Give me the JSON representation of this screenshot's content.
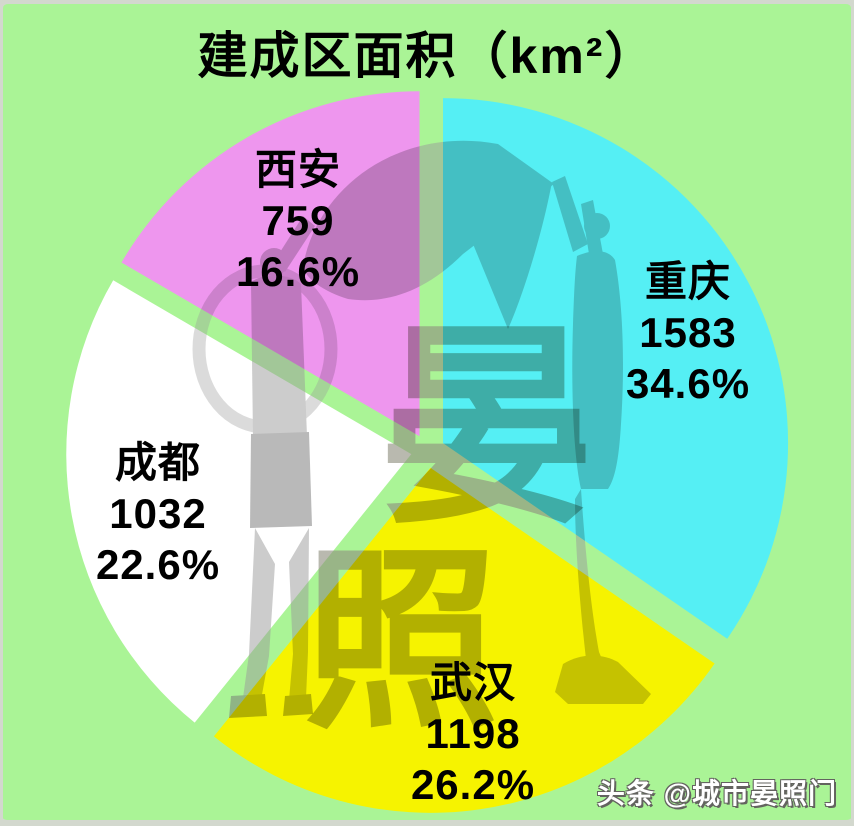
{
  "title": "建成区面积（km²）",
  "watermark": {
    "credit": "头条 @城市晏照门",
    "seal_chars": [
      "晏",
      "照"
    ]
  },
  "colors": {
    "background": "#AAF496",
    "frame_border": "#D3D8CE",
    "label_text": "#000000",
    "credit_text": "#FFFFFF"
  },
  "chart_data": {
    "type": "pie",
    "title": "建成区面积（km²）",
    "unit": "km²",
    "style": "exploded",
    "direction": "clockwise",
    "start_angle_deg": 0,
    "legend_position": "none",
    "background_color": "#AAF496",
    "slices": [
      {
        "name": "重庆",
        "value": 1583,
        "value_label": "1583",
        "pct": 34.6,
        "pct_label": "34.6%",
        "color": "#55EFF4"
      },
      {
        "name": "武汉",
        "value": 1198,
        "value_label": "1198",
        "pct": 26.2,
        "pct_label": "26.2%",
        "color": "#F6F300"
      },
      {
        "name": "成都",
        "value": 1032,
        "value_label": "1032",
        "pct": 22.6,
        "pct_label": "22.6%",
        "color": "#FFFFFF"
      },
      {
        "name": "西安",
        "value": 759,
        "value_label": "759",
        "pct": 16.6,
        "pct_label": "16.6%",
        "color": "#EE96EE"
      }
    ]
  }
}
